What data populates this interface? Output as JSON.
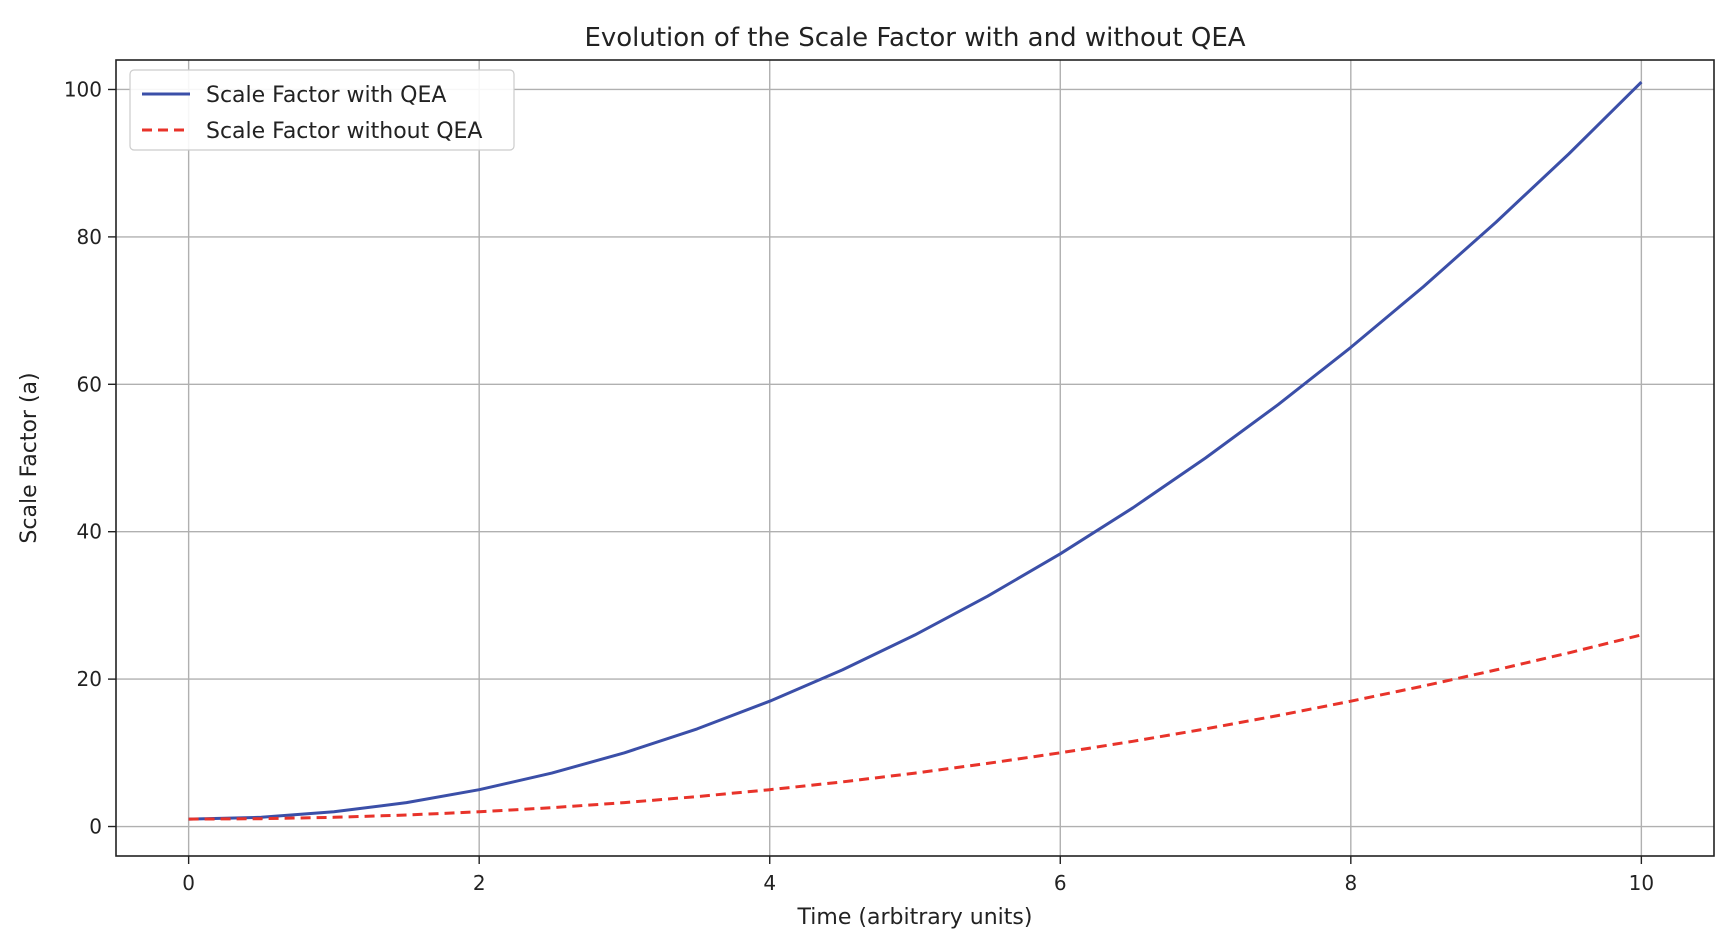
{
  "chart_data": {
    "type": "line",
    "title": "Evolution of the Scale Factor with and without QEA",
    "xlabel": "Time (arbitrary units)",
    "ylabel": "Scale Factor (a)",
    "xlim": [
      -0.5,
      10.5
    ],
    "ylim": [
      -4,
      104
    ],
    "xticks": [
      0,
      2,
      4,
      6,
      8,
      10
    ],
    "yticks": [
      0,
      20,
      40,
      60,
      80,
      100
    ],
    "grid": true,
    "legend_position": "top-left",
    "x": [
      0,
      0.5,
      1,
      1.5,
      2,
      2.5,
      3,
      3.5,
      4,
      4.5,
      5,
      5.5,
      6,
      6.5,
      7,
      7.5,
      8,
      8.5,
      9,
      9.5,
      10
    ],
    "series": [
      {
        "name": "Scale Factor with QEA",
        "style": "solid",
        "color": "#3b4fa8",
        "values": [
          1,
          1.25,
          2,
          3.25,
          5,
          7.25,
          10,
          13.25,
          17,
          21.25,
          26,
          31.25,
          37,
          43.25,
          50,
          57.25,
          65,
          73.25,
          82,
          91.25,
          101
        ]
      },
      {
        "name": "Scale Factor without QEA",
        "style": "dashed",
        "color": "#e8332a",
        "values": [
          1,
          1.06,
          1.25,
          1.56,
          2,
          2.56,
          3.25,
          4.06,
          5,
          6.06,
          7.25,
          8.56,
          10,
          11.56,
          13.25,
          15.06,
          17,
          19.06,
          21.25,
          23.56,
          26
        ]
      }
    ]
  }
}
